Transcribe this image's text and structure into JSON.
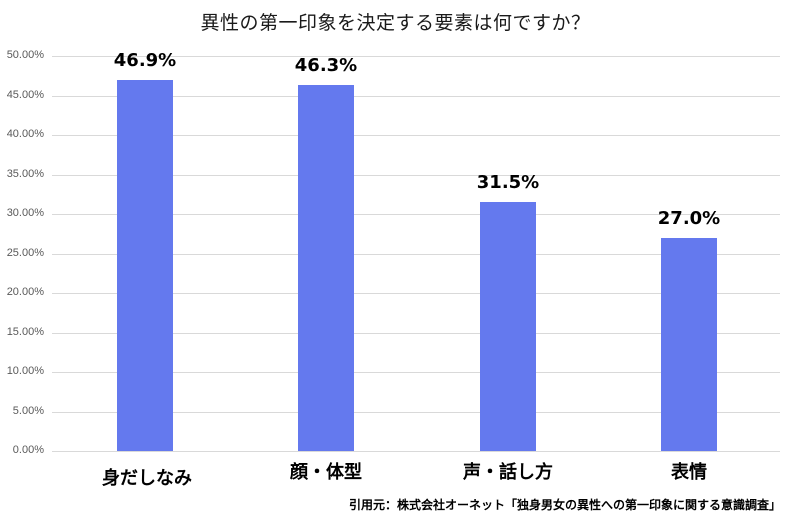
{
  "chart_data": {
    "type": "bar",
    "title": "異性の第一印象を決定する要素は何ですか？",
    "categories": [
      "身だしなみ",
      "顔・体型",
      "声・話し方",
      "表情"
    ],
    "values": [
      46.9,
      46.3,
      31.5,
      27.0
    ],
    "value_labels": [
      "46.9%",
      "46.3%",
      "31.5%",
      "27.0%"
    ],
    "xlabel": "",
    "ylabel": "",
    "ylim": [
      0,
      50
    ],
    "yticks": [
      "0.00%",
      "5.00%",
      "10.00%",
      "15.00%",
      "20.00%",
      "25.00%",
      "30.00%",
      "35.00%",
      "40.00%",
      "45.00%",
      "50.00%"
    ],
    "grid": true,
    "legend": null,
    "bar_color": "#6479ee",
    "source": "引用元：株式会社オーネット「独身男女の異性への第一印象に関する意識調査」"
  }
}
